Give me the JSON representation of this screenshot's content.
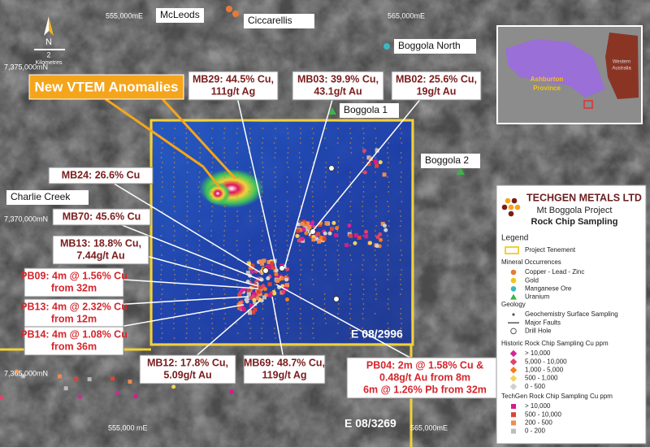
{
  "grid_labels": {
    "top": [
      "555,000mE",
      "565,000mE"
    ],
    "left": [
      "7,375,000mN",
      "7,370,000mN",
      "7,365,000mN"
    ],
    "bottom": [
      "555,000 mE",
      "565,000mE"
    ]
  },
  "north_arrow": {
    "label": "N",
    "scale": "2",
    "unit": "Kilometres"
  },
  "places": [
    "McLeods",
    "Ciccarellis",
    "Boggola North",
    "Boggola 1",
    "Boggola 2",
    "Charlie Creek"
  ],
  "headline": "New VTEM Anomalies",
  "callouts": [
    {
      "lines": [
        "MB29: 44.5% Cu,",
        "111g/t Ag"
      ]
    },
    {
      "lines": [
        "MB03: 39.9% Cu,",
        "43.1g/t Au"
      ]
    },
    {
      "lines": [
        "MB02: 25.6% Cu,",
        "19g/t Au"
      ]
    },
    {
      "lines": [
        "MB24: 26.6% Cu"
      ]
    },
    {
      "lines": [
        "MB70: 45.6% Cu"
      ]
    },
    {
      "lines": [
        "MB13: 18.8% Cu,",
        "7.44g/t Au"
      ]
    },
    {
      "lines": [
        "PB09: 4m @ 1.56% Cu",
        "from 32m"
      ]
    },
    {
      "lines": [
        "PB13: 4m @ 2.32% Cu",
        "from 12m"
      ]
    },
    {
      "lines": [
        "PB14: 4m @ 1.08% Cu",
        "from 36m"
      ]
    },
    {
      "lines": [
        "MB12: 17.8% Cu,",
        "5.09g/t Au"
      ]
    },
    {
      "lines": [
        "MB69: 48.7% Cu,",
        "119g/t Ag"
      ]
    },
    {
      "lines": [
        "PB04: 2m @ 1.58% Cu &",
        "0.48g/t Au from 8m",
        "6m @ 1.26% Pb from 32m"
      ]
    }
  ],
  "tenements": [
    "E 08/2996",
    "E 08/3269"
  ],
  "inset": {
    "province": [
      "Ashburton",
      "Province"
    ],
    "state": [
      "Western",
      "Australia"
    ]
  },
  "legend": {
    "company": "TECHGEN METALS LTD",
    "project": "Mt Boggola Project",
    "subject": "Rock Chip Sampling",
    "title": "Legend",
    "tenement": "Project Tenement",
    "mineral": {
      "title": "Mineral Occurrences",
      "items": [
        "Copper - Lead - Zinc",
        "Gold",
        "Manganese Ore",
        "Uranium"
      ]
    },
    "geology": {
      "title": "Geology",
      "items": [
        "Geochemistry Surface Sampling",
        "Major Faults",
        "Drill Hole"
      ]
    },
    "historic": {
      "title": "Historic Rock Chip Sampling Cu ppm",
      "items": [
        "> 10,000",
        "5,000 - 10,000",
        "1,000 - 5,000",
        "500 - 1,000",
        "0 - 500"
      ]
    },
    "techgen": {
      "title": "TechGen Rock Chip Sampling Cu ppm",
      "items": [
        "> 10,000",
        "500 - 10,000",
        "200 - 500",
        "0 - 200"
      ]
    }
  }
}
